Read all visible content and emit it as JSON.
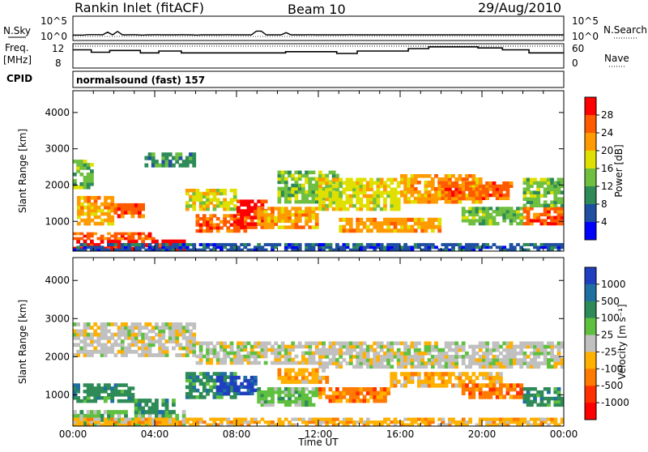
{
  "header": {
    "station": "Rankin Inlet (fitACF)",
    "beam": "Beam 10",
    "date": "29/Aug/2010"
  },
  "panels": {
    "nsky": {
      "label": "N.Sky",
      "left_ticks": [
        "10^5",
        "10^0"
      ],
      "right_ticks": [
        "10^5",
        "10^0"
      ],
      "right_label": "N.Search",
      "nsky_values": [
        8,
        8,
        8,
        10,
        10,
        10,
        9,
        40,
        9,
        60,
        9,
        9,
        10,
        9,
        8,
        9,
        9,
        10,
        9,
        9,
        9,
        9,
        10,
        9,
        9,
        8,
        9,
        9,
        9,
        9,
        9,
        10,
        9,
        9,
        9,
        9,
        9,
        70,
        70,
        9,
        9,
        9,
        9,
        30,
        9,
        9,
        9,
        9,
        10,
        9,
        9,
        9,
        9,
        9,
        9,
        9,
        10,
        9,
        9,
        9,
        9,
        9,
        9,
        9,
        9,
        9,
        9,
        9,
        9,
        9,
        9,
        9,
        9,
        9,
        9,
        9,
        9,
        9,
        9,
        9,
        9,
        9,
        9,
        9,
        9,
        9,
        9,
        9,
        9,
        9,
        9,
        9,
        9,
        9,
        9,
        9,
        9,
        9,
        9,
        9
      ],
      "nsearch_values": [
        9,
        9,
        9,
        9,
        9,
        9,
        9,
        9,
        9,
        9,
        9,
        9,
        9,
        9,
        9,
        9,
        9,
        9,
        9,
        9,
        9,
        9,
        9,
        9,
        9,
        9,
        9,
        9,
        9,
        9,
        9,
        9,
        9,
        9,
        9,
        9,
        9,
        9,
        9,
        9,
        9,
        9,
        9,
        9,
        9,
        9,
        9,
        9,
        9,
        9,
        9,
        9,
        9,
        9,
        9,
        9,
        9,
        9,
        9,
        9,
        9,
        9,
        9,
        9,
        9,
        9,
        9,
        9,
        9,
        9,
        9,
        9,
        9,
        9,
        9,
        9,
        9,
        9,
        9,
        9,
        9,
        9,
        9,
        9,
        9,
        9,
        9,
        9,
        9,
        9,
        9,
        9,
        9,
        9,
        9,
        9,
        9,
        9,
        9,
        9
      ]
    },
    "freq": {
      "label": "Freq.",
      "unit": "[MHz]",
      "left_ticks": [
        "12",
        "8"
      ],
      "right_ticks": [
        "60",
        "0"
      ],
      "right_label": "Nave",
      "freq_steps": [
        {
          "t0": 0.0,
          "t1": 0.9,
          "f": 11.0
        },
        {
          "t0": 0.9,
          "t1": 1.8,
          "f": 10.6
        },
        {
          "t0": 1.8,
          "t1": 3.3,
          "f": 10.9
        },
        {
          "t0": 3.3,
          "t1": 4.2,
          "f": 10.5
        },
        {
          "t0": 4.2,
          "t1": 5.3,
          "f": 10.8
        },
        {
          "t0": 5.3,
          "t1": 10.4,
          "f": 10.5
        },
        {
          "t0": 10.4,
          "t1": 12.9,
          "f": 10.7
        },
        {
          "t0": 12.9,
          "t1": 13.9,
          "f": 10.4
        },
        {
          "t0": 13.9,
          "t1": 16.4,
          "f": 10.8
        },
        {
          "t0": 16.4,
          "t1": 17.4,
          "f": 11.2
        },
        {
          "t0": 17.4,
          "t1": 19.8,
          "f": 11.5
        },
        {
          "t0": 19.8,
          "t1": 21.0,
          "f": 11.3
        },
        {
          "t0": 21.0,
          "t1": 22.3,
          "f": 11.0
        },
        {
          "t0": 22.3,
          "t1": 24.0,
          "f": 10.5
        }
      ],
      "nave_level": 11.6
    },
    "cpid": {
      "label": "CPID",
      "text": "normalsound (fast) 157"
    }
  },
  "chart_data": [
    {
      "type": "heatmap",
      "name": "Power",
      "xlabel": "",
      "ylabel": "Slant Range [km]",
      "xlim": [
        0,
        24
      ],
      "ylim": [
        180,
        4600
      ],
      "yticks": [
        "1000",
        "2000",
        "3000",
        "4000"
      ],
      "colorbar_label": "Power [dB]",
      "colorbar_ticks": [
        "28",
        "24",
        "20",
        "16",
        "12",
        "8",
        "4"
      ],
      "colorbar_colors": [
        "#ff0000",
        "#ff5a00",
        "#ff9b00",
        "#e0e000",
        "#6fbf40",
        "#2e8b57",
        "#1f4fa0",
        "#0000ff"
      ],
      "echo_regions": [
        {
          "t0": 0.0,
          "t1": 5.5,
          "r0": 200,
          "r1": 500,
          "c": 0
        },
        {
          "t0": 0.0,
          "t1": 4.0,
          "r0": 500,
          "r1": 700,
          "c": 1
        },
        {
          "t0": 0.2,
          "t1": 2.0,
          "r0": 900,
          "r1": 1700,
          "c": 2
        },
        {
          "t0": 0.0,
          "t1": 1.0,
          "r0": 1900,
          "r1": 2700,
          "c": 4
        },
        {
          "t0": 2.0,
          "t1": 3.5,
          "r0": 1100,
          "r1": 1500,
          "c": 1
        },
        {
          "t0": 3.5,
          "t1": 6.0,
          "r0": 2500,
          "r1": 2900,
          "c": 5
        },
        {
          "t0": 5.5,
          "t1": 8.0,
          "r0": 1300,
          "r1": 1900,
          "c": 3
        },
        {
          "t0": 6.0,
          "t1": 8.5,
          "r0": 700,
          "r1": 1200,
          "c": 1
        },
        {
          "t0": 8.0,
          "t1": 9.5,
          "r0": 800,
          "r1": 1600,
          "c": 0
        },
        {
          "t0": 9.0,
          "t1": 12.0,
          "r0": 800,
          "r1": 1400,
          "c": 2
        },
        {
          "t0": 10.0,
          "t1": 13.0,
          "r0": 1500,
          "r1": 2400,
          "c": 4
        },
        {
          "t0": 12.0,
          "t1": 16.0,
          "r0": 1300,
          "r1": 2200,
          "c": 3
        },
        {
          "t0": 13.0,
          "t1": 18.0,
          "r0": 700,
          "r1": 1100,
          "c": 2
        },
        {
          "t0": 16.0,
          "t1": 20.0,
          "r0": 1500,
          "r1": 2300,
          "c": 2
        },
        {
          "t0": 18.0,
          "t1": 21.5,
          "r0": 1600,
          "r1": 2100,
          "c": 1
        },
        {
          "t0": 19.0,
          "t1": 22.0,
          "r0": 900,
          "r1": 1400,
          "c": 4
        },
        {
          "t0": 22.0,
          "t1": 24.0,
          "r0": 900,
          "r1": 1400,
          "c": 1
        },
        {
          "t0": 22.0,
          "t1": 24.0,
          "r0": 1400,
          "r1": 2200,
          "c": 4
        },
        {
          "t0": 0.0,
          "t1": 24.0,
          "r0": 180,
          "r1": 400,
          "c": 6
        }
      ]
    },
    {
      "type": "heatmap",
      "name": "Velocity",
      "xlabel": "Time UT",
      "ylabel": "Slant Range [km]",
      "xlim": [
        0,
        24
      ],
      "ylim": [
        180,
        4600
      ],
      "xticks": [
        "00:00",
        "04:00",
        "08:00",
        "12:00",
        "16:00",
        "20:00",
        "00:00"
      ],
      "yticks": [
        "1000",
        "2000",
        "3000",
        "4000"
      ],
      "colorbar_label": "Velocity [m s⁻¹]",
      "colorbar_ticks": [
        "1000",
        "500",
        "100",
        "25",
        "-25",
        "-100",
        "-500",
        "-1000"
      ],
      "colorbar_colors": [
        "#1f3fc0",
        "#1f6fa0",
        "#2e8b57",
        "#5fc040",
        "#c0c0c0",
        "#ffb000",
        "#ff7a00",
        "#ff3000",
        "#ff0000"
      ],
      "echo_regions": [
        {
          "t0": 0.0,
          "t1": 6.0,
          "r0": 2000,
          "r1": 2900,
          "c": 4
        },
        {
          "t0": 6.0,
          "t1": 12.0,
          "r0": 1800,
          "r1": 2400,
          "c": 4
        },
        {
          "t0": 12.0,
          "t1": 24.0,
          "r0": 1700,
          "r1": 2400,
          "c": 4
        },
        {
          "t0": 0.0,
          "t1": 3.0,
          "r0": 800,
          "r1": 1300,
          "c": 2
        },
        {
          "t0": 0.0,
          "t1": 5.5,
          "r0": 200,
          "r1": 600,
          "c": 3
        },
        {
          "t0": 3.0,
          "t1": 5.0,
          "r0": 500,
          "r1": 900,
          "c": 2
        },
        {
          "t0": 5.5,
          "t1": 8.0,
          "r0": 900,
          "r1": 1600,
          "c": 2
        },
        {
          "t0": 7.0,
          "t1": 9.0,
          "r0": 1000,
          "r1": 1500,
          "c": 0
        },
        {
          "t0": 9.0,
          "t1": 12.0,
          "r0": 700,
          "r1": 1200,
          "c": 3
        },
        {
          "t0": 10.0,
          "t1": 12.5,
          "r0": 1300,
          "r1": 1700,
          "c": 5
        },
        {
          "t0": 12.0,
          "t1": 15.5,
          "r0": 800,
          "r1": 1200,
          "c": 6
        },
        {
          "t0": 15.5,
          "t1": 21.0,
          "r0": 1200,
          "r1": 1600,
          "c": 5
        },
        {
          "t0": 19.0,
          "t1": 22.0,
          "r0": 900,
          "r1": 1300,
          "c": 6
        },
        {
          "t0": 22.0,
          "t1": 24.0,
          "r0": 700,
          "r1": 1200,
          "c": 2
        },
        {
          "t0": 0.0,
          "t1": 24.0,
          "r0": 180,
          "r1": 400,
          "c": 5
        }
      ]
    }
  ]
}
